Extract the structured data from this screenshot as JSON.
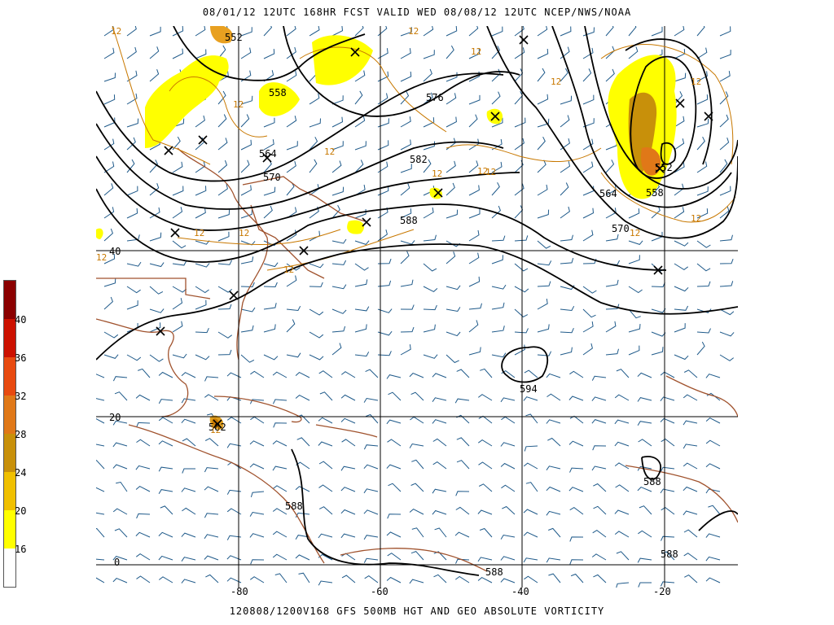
{
  "header": {
    "title": "08/01/12 12UTC  168HR  FCST VALID WED 08/08/12 12UTC  NCEP/NWS/NOAA",
    "footer": "120808/1200V168 GFS 500MB HGT AND GEO ABSOLUTE VORTICITY"
  },
  "legend": {
    "labels": [
      "40",
      "36",
      "32",
      "28",
      "24",
      "20",
      "16"
    ],
    "colors": [
      "#8b0000",
      "#cc1100",
      "#e84a10",
      "#e07818",
      "#c8900a",
      "#f0c000",
      "#ffff00",
      "#ffffff"
    ]
  },
  "axes": {
    "lat_labels": [
      "40",
      "20",
      "0"
    ],
    "lon_labels": [
      "-80",
      "-60",
      "-40",
      "-20"
    ]
  },
  "contours": {
    "height_labels": [
      "552",
      "558",
      "576",
      "564",
      "570",
      "582",
      "588",
      "594",
      "552",
      "558",
      "564",
      "570",
      "588",
      "588",
      "588",
      "582",
      "588"
    ],
    "vort_label": "12"
  },
  "colors": {
    "contour": "#000000",
    "vorticity_line": "#c87800",
    "coast": "#a0522d",
    "wind_barbs": "#1f5a8a",
    "grid": "#000000"
  }
}
